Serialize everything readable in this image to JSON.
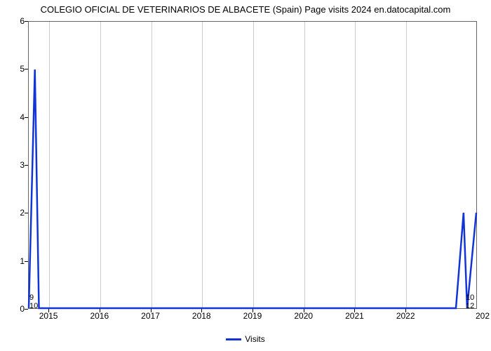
{
  "title": "COLEGIO OFICIAL DE VETERINARIOS DE ALBACETE (Spain) Page visits 2024 en.datocapital.com",
  "chart": {
    "type": "line",
    "background_color": "#ffffff",
    "plot_border_color": "#666666",
    "grid_color": "#cccccc",
    "line_color": "#1134d6",
    "line_width": 2.5,
    "title_fontsize": 13,
    "tick_fontsize": 12,
    "x": {
      "min": 2014.6,
      "max": 2023.4,
      "ticks": [
        2015,
        2016,
        2017,
        2018,
        2019,
        2020,
        2021,
        2022
      ],
      "right_truncated_label": "202"
    },
    "y": {
      "min": 0,
      "max": 6,
      "ticks": [
        0,
        1,
        2,
        3,
        4,
        5,
        6
      ]
    },
    "series": {
      "name": "Visits",
      "data": [
        {
          "x": 2014.6,
          "y": 0.0
        },
        {
          "x": 2014.72,
          "y": 5.0
        },
        {
          "x": 2014.8,
          "y": 0.0
        },
        {
          "x": 2015.0,
          "y": 0.0
        },
        {
          "x": 2016.0,
          "y": 0.0
        },
        {
          "x": 2017.0,
          "y": 0.0
        },
        {
          "x": 2018.0,
          "y": 0.0
        },
        {
          "x": 2019.0,
          "y": 0.0
        },
        {
          "x": 2020.0,
          "y": 0.0
        },
        {
          "x": 2021.0,
          "y": 0.0
        },
        {
          "x": 2022.0,
          "y": 0.0
        },
        {
          "x": 2022.8,
          "y": 0.0
        },
        {
          "x": 2023.0,
          "y": 0.0
        },
        {
          "x": 2023.15,
          "y": 2.0
        },
        {
          "x": 2023.22,
          "y": 0.0
        },
        {
          "x": 2023.4,
          "y": 2.0
        }
      ]
    },
    "end_labels": {
      "start_top": "9",
      "start_bottom": "10",
      "end_top": "10",
      "end_bottom": "12"
    },
    "legend": {
      "label": "Visits",
      "swatch_color": "#1134d6"
    }
  }
}
